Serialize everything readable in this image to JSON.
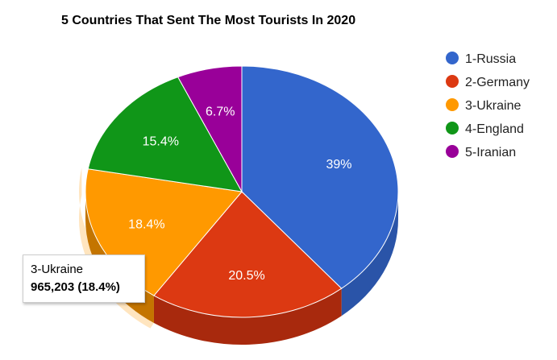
{
  "chart_data": {
    "type": "pie",
    "title": "5 Countries That Sent The Most Tourists In 2020",
    "slices": [
      {
        "name": "1-Russia",
        "value": 39.0,
        "label": "39%",
        "color": "#3366cc",
        "side": "#2a54a8"
      },
      {
        "name": "2-Germany",
        "value": 20.5,
        "label": "20.5%",
        "color": "#dc3912",
        "side": "#a8290d"
      },
      {
        "name": "3-Ukraine",
        "value": 18.4,
        "label": "18.4%",
        "color": "#ff9900",
        "side": "#c47500"
      },
      {
        "name": "4-England",
        "value": 15.4,
        "label": "15.4%",
        "color": "#109618",
        "side": "#0c7012"
      },
      {
        "name": "5-Iranian",
        "value": 6.7,
        "label": "6.7%",
        "color": "#990099",
        "side": "#6e006e"
      }
    ],
    "legend_position": "right",
    "is_3d": true,
    "highlighted": "3-Ukraine",
    "tooltip": {
      "name": "3-Ukraine",
      "value": "965,203 (18.4%)"
    }
  }
}
